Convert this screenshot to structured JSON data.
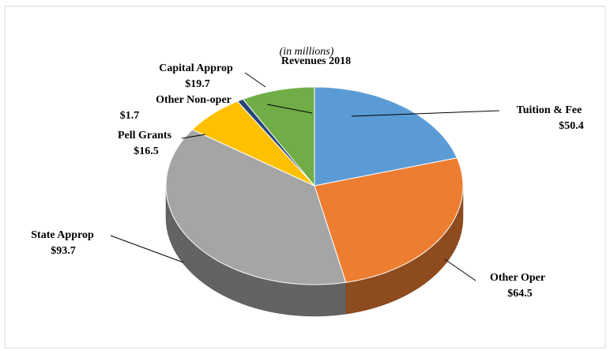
{
  "chart_data": {
    "type": "pie3d",
    "title": "Revenues 2018",
    "subtitle": "(in millions)",
    "categories": [
      "Tuition & Fee",
      "Other Oper",
      "State Approp",
      "Pell Grants",
      "Other Non-oper",
      "Capital Approp"
    ],
    "values": [
      50.4,
      64.5,
      93.7,
      16.5,
      1.7,
      19.7
    ],
    "value_labels": [
      "$50.4",
      "$64.5",
      "$93.7",
      "$16.5",
      "$1.7",
      "$19.7"
    ],
    "colors": [
      "#5b9bd5",
      "#ed7d31",
      "#a5a5a5",
      "#ffc000",
      "#264478",
      "#70ad47"
    ]
  }
}
